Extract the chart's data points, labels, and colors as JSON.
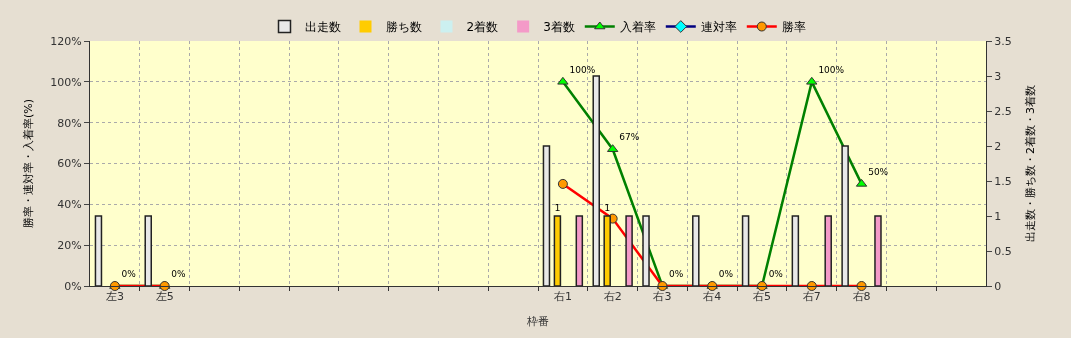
{
  "chart_data": {
    "type": "bar",
    "categories": [
      "左3",
      "左5",
      null,
      null,
      null,
      null,
      null,
      null,
      null,
      "右1",
      "右2",
      "右3",
      "右4",
      "右5",
      "右7",
      "右8",
      null,
      null
    ],
    "xlabel": "枠番",
    "ylabel": "勝率・連対率・入着率(%)",
    "y2label": "出走数・勝ち数・2着数・3着数",
    "ylim": [
      0,
      120
    ],
    "yticks": [
      {
        "value": 0,
        "label": "0%"
      },
      {
        "value": 20,
        "label": "20%"
      },
      {
        "value": 40,
        "label": "40%"
      },
      {
        "value": 60,
        "label": "60%"
      },
      {
        "value": 80,
        "label": "80%"
      },
      {
        "value": 100,
        "label": "100%"
      },
      {
        "value": 120,
        "label": "120%"
      }
    ],
    "y2lim": [
      0,
      3.5
    ],
    "y2ticks": [
      0,
      0.5,
      1,
      1.5,
      2,
      2.5,
      3,
      3.5
    ],
    "grid": true,
    "legend": "top",
    "series": [
      {
        "name": "出走数",
        "axis": "y2",
        "color": "#e8e8e8",
        "values": [
          1,
          1,
          null,
          null,
          null,
          null,
          null,
          null,
          null,
          2,
          3,
          1,
          1,
          1,
          1,
          2,
          null,
          null
        ]
      },
      {
        "name": "勝ち数",
        "axis": "y2",
        "color": "#ffcc00",
        "values": [
          0,
          0,
          null,
          null,
          null,
          null,
          null,
          null,
          null,
          1,
          1,
          0,
          0,
          0,
          0,
          0,
          null,
          null
        ],
        "value_labels": [
          null,
          null,
          null,
          null,
          null,
          null,
          null,
          null,
          null,
          "1",
          "1",
          null,
          null,
          null,
          null,
          null,
          null,
          null
        ]
      },
      {
        "name": "2着数",
        "axis": "y2",
        "color": "#ccf0f0",
        "values": [
          0,
          0,
          null,
          null,
          null,
          null,
          null,
          null,
          null,
          0,
          0,
          0,
          0,
          0,
          0,
          0,
          null,
          null
        ]
      },
      {
        "name": "3着数",
        "axis": "y2",
        "color": "#f49ac8",
        "values": [
          0,
          0,
          null,
          null,
          null,
          null,
          null,
          null,
          null,
          1,
          1,
          0,
          0,
          0,
          1,
          1,
          null,
          null
        ]
      },
      {
        "name": "入着率",
        "type": "line",
        "axis": "y",
        "color": "#008000",
        "marker": "triangle",
        "values": [
          0,
          0,
          null,
          null,
          null,
          null,
          null,
          null,
          null,
          100,
          67,
          0,
          0,
          0,
          100,
          50,
          null,
          null
        ],
        "value_labels": [
          "0%",
          "0%",
          null,
          null,
          null,
          null,
          null,
          null,
          null,
          "100%",
          "67%",
          "0%",
          "0%",
          "0%",
          "100%",
          "50%",
          null,
          null
        ]
      },
      {
        "name": "連対率",
        "type": "line",
        "axis": "y",
        "color": "#000080",
        "marker": "diamond",
        "values": [
          null,
          null,
          null,
          null,
          null,
          null,
          null,
          null,
          null,
          null,
          null,
          null,
          null,
          null,
          null,
          null,
          null,
          null
        ]
      },
      {
        "name": "勝率",
        "type": "line",
        "axis": "y",
        "color": "#ff0000",
        "marker": "circle",
        "values": [
          0,
          0,
          null,
          null,
          null,
          null,
          null,
          null,
          null,
          50,
          33,
          0,
          0,
          0,
          0,
          0,
          null,
          null
        ]
      }
    ]
  }
}
